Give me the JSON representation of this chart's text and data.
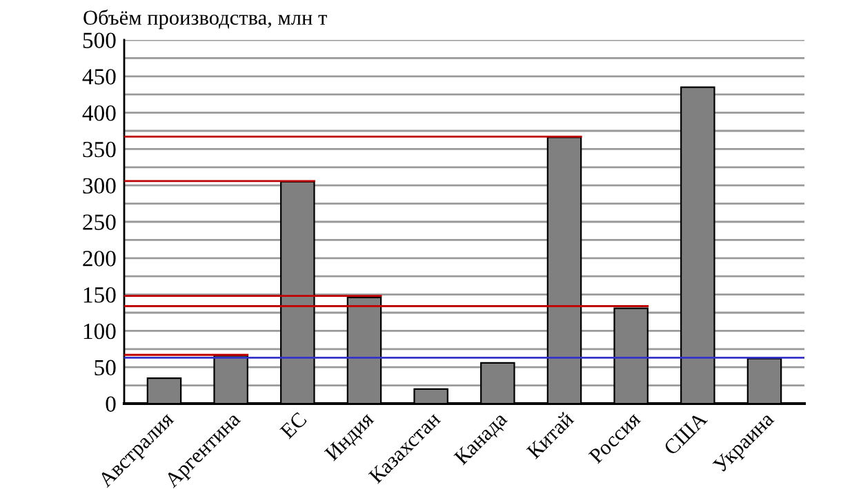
{
  "chart_data": {
    "type": "bar",
    "ylabel": "Объём производства, млн т",
    "categories": [
      "Австралия",
      "Аргентина",
      "ЕС",
      "Индия",
      "Казахстан",
      "Канада",
      "Китай",
      "Россия",
      "США",
      "Украина"
    ],
    "values": [
      35,
      66,
      305,
      146,
      20,
      56,
      366,
      131,
      435,
      62
    ],
    "color": "#808080",
    "ylim": [
      0,
      500
    ],
    "yticks": [
      0,
      {
        "value": 25,
        "label": null
      },
      50,
      {
        "value": 75,
        "label": null
      },
      100,
      {
        "value": 125,
        "label": null
      },
      150,
      {
        "value": 175,
        "label": null
      },
      200,
      {
        "value": 225,
        "label": null
      },
      250,
      {
        "value": 275,
        "label": null
      },
      300,
      {
        "value": 325,
        "label": null
      },
      350,
      {
        "value": 375,
        "label": null
      },
      400,
      {
        "value": 425,
        "label": null
      },
      450,
      {
        "value": 475,
        "label": null
      },
      500
    ],
    "grid": "y",
    "ref_lines": [
      {
        "axis": "y",
        "value": 367,
        "color": "#c00000"
      },
      {
        "axis": "y",
        "value": 306,
        "color": "#c00000"
      },
      {
        "axis": "y",
        "value": 148,
        "color": "#c00000"
      },
      {
        "axis": "y",
        "value": 134,
        "color": "#c00000"
      },
      {
        "axis": "y",
        "value": 67,
        "color": "#c00000"
      },
      {
        "axis": "y",
        "value": 63,
        "color": "#3333cc"
      }
    ]
  }
}
